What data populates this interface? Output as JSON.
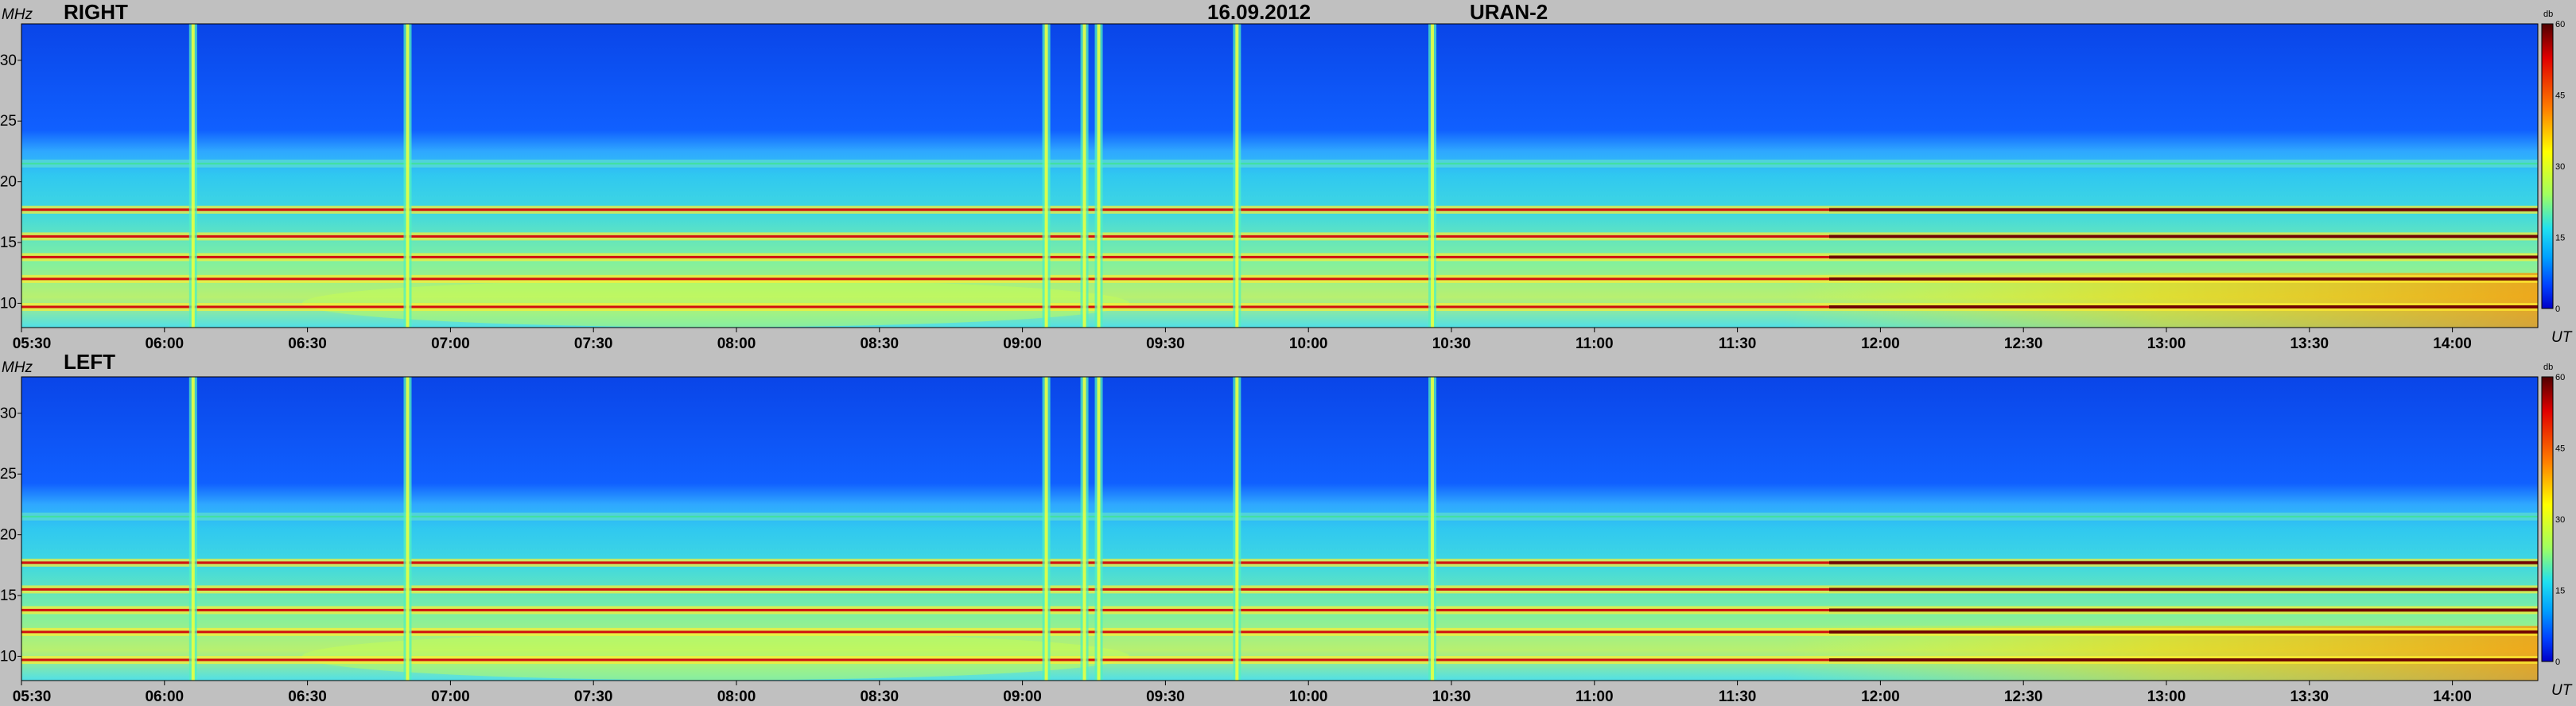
{
  "header": {
    "date": "16.09.2012",
    "instrument": "URAN-2"
  },
  "axis": {
    "y_unit": "MHz",
    "x_unit": "UT",
    "colorbar_unit": "db"
  },
  "colors": {
    "background": "#c0c0c0",
    "colormap": [
      "#0000c8",
      "#0040ff",
      "#00a0ff",
      "#20e0f0",
      "#a0ff60",
      "#ffff00",
      "#ff8000",
      "#e00000",
      "#500000"
    ]
  },
  "chart_data": [
    {
      "type": "heatmap",
      "title": "RIGHT",
      "xlabel": "UT",
      "ylabel": "MHz",
      "x_ticks": [
        "05:30",
        "06:00",
        "06:30",
        "07:00",
        "07:30",
        "08:00",
        "08:30",
        "09:00",
        "09:30",
        "10:00",
        "10:30",
        "11:00",
        "11:30",
        "12:00",
        "12:30",
        "13:00",
        "13:30",
        "14:00"
      ],
      "y_ticks": [
        "30",
        "25",
        "20",
        "15",
        "10"
      ],
      "ylim": [
        8,
        33
      ],
      "colorbar": {
        "ticks": [
          "60",
          "45",
          "30",
          "15",
          "0"
        ],
        "range": [
          0,
          60
        ]
      },
      "horizontal_bands_MHz": [
        9.7,
        12.0,
        13.8,
        15.5,
        17.7,
        21.5
      ],
      "vertical_bursts_UT": [
        "06:01",
        "06:46",
        "09:00",
        "09:08",
        "09:11",
        "09:40",
        "10:21"
      ]
    },
    {
      "type": "heatmap",
      "title": "LEFT",
      "xlabel": "UT",
      "ylabel": "MHz",
      "x_ticks": [
        "05:30",
        "06:00",
        "06:30",
        "07:00",
        "07:30",
        "08:00",
        "08:30",
        "09:00",
        "09:30",
        "10:00",
        "10:30",
        "11:00",
        "11:30",
        "12:00",
        "12:30",
        "13:00",
        "13:30",
        "14:00"
      ],
      "y_ticks": [
        "30",
        "25",
        "20",
        "15",
        "10"
      ],
      "ylim": [
        8,
        33
      ],
      "colorbar": {
        "ticks": [
          "60",
          "45",
          "30",
          "15",
          "0"
        ],
        "range": [
          0,
          60
        ]
      },
      "horizontal_bands_MHz": [
        9.7,
        12.0,
        13.8,
        15.5,
        17.7,
        21.5
      ],
      "vertical_bursts_UT": [
        "06:01",
        "06:46",
        "09:00",
        "09:08",
        "09:11",
        "09:40",
        "10:21"
      ]
    }
  ]
}
